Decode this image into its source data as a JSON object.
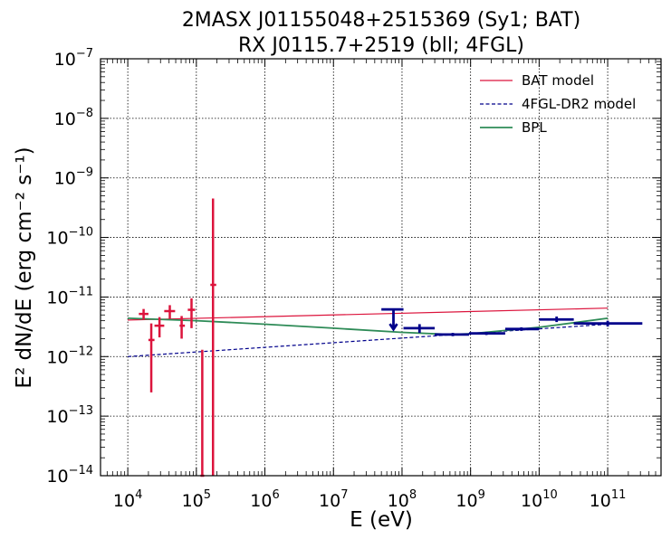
{
  "chart_data": {
    "type": "scatter",
    "title_line1": "2MASX J01155048+2515369 (Sy1; BAT)",
    "title_line2": "RX J0115.7+2519 (bll; 4FGL)",
    "xlabel": "E (eV)",
    "ylabel": "E² dN/dE (erg cm⁻² s⁻¹)",
    "x_scale": "log",
    "y_scale": "log",
    "xlim": [
      4000,
      600000000000.0
    ],
    "ylim": [
      1e-14,
      1e-07
    ],
    "grid": true,
    "legend_position": "top-right",
    "x_tick_labels": [
      {
        "value": 10000.0,
        "base": "10",
        "exp": "4"
      },
      {
        "value": 100000.0,
        "base": "10",
        "exp": "5"
      },
      {
        "value": 1000000.0,
        "base": "10",
        "exp": "6"
      },
      {
        "value": 10000000.0,
        "base": "10",
        "exp": "7"
      },
      {
        "value": 100000000.0,
        "base": "10",
        "exp": "8"
      },
      {
        "value": 1000000000.0,
        "base": "10",
        "exp": "9"
      },
      {
        "value": 10000000000.0,
        "base": "10",
        "exp": "10"
      },
      {
        "value": 100000000000.0,
        "base": "10",
        "exp": "11"
      }
    ],
    "y_tick_labels": [
      {
        "value": 1e-14,
        "base": "10",
        "exp": "−14"
      },
      {
        "value": 1e-13,
        "base": "10",
        "exp": "−13"
      },
      {
        "value": 1e-12,
        "base": "10",
        "exp": "−12"
      },
      {
        "value": 1e-11,
        "base": "10",
        "exp": "−11"
      },
      {
        "value": 1e-10,
        "base": "10",
        "exp": "−10"
      },
      {
        "value": 1e-09,
        "base": "10",
        "exp": "−9"
      },
      {
        "value": 1e-08,
        "base": "10",
        "exp": "−8"
      },
      {
        "value": 1e-07,
        "base": "10",
        "exp": "−7"
      }
    ],
    "legend": [
      {
        "label": "BAT model",
        "color": "#dc143c",
        "dash": "solid"
      },
      {
        "label": "4FGL-DR2 model",
        "color": "#00008b",
        "dash": "dashed"
      },
      {
        "label": "BPL",
        "color": "#2e8b57",
        "dash": "solid"
      }
    ],
    "lines": [
      {
        "name": "BAT model",
        "color": "#dc143c",
        "dash": "solid",
        "x": [
          10000.0,
          100000000000.0
        ],
        "y": [
          4.1e-12,
          6.5e-12
        ]
      },
      {
        "name": "4FGL-DR2 model",
        "color": "#00008b",
        "dash": "dashed",
        "x": [
          10000.0,
          100000000000.0
        ],
        "y": [
          1e-12,
          3.5e-12
        ]
      },
      {
        "name": "BPL",
        "color": "#2e8b57",
        "dash": "solid",
        "x": [
          10000.0,
          100000.0,
          1000000.0,
          10000000.0,
          100000000.0,
          500000000.0,
          1000000000.0,
          10000000000.0,
          100000000000.0
        ],
        "y": [
          4.4e-12,
          4e-12,
          3.5e-12,
          3e-12,
          2.55e-12,
          2.35e-12,
          2.42e-12,
          3.1e-12,
          4.4e-12
        ]
      }
    ],
    "bat_points": {
      "color": "#dc143c",
      "points": [
        {
          "x": 17000.0,
          "xlo": 14500.0,
          "xhi": 20000.0,
          "y": 5.2e-12,
          "ylo": 4.2e-12,
          "yhi": 6.3e-12,
          "upper_limit": false
        },
        {
          "x": 22000.0,
          "xlo": 20000.0,
          "xhi": 24500.0,
          "y": 1.9e-12,
          "ylo": 2.5e-13,
          "yhi": 3.6e-12,
          "upper_limit": false
        },
        {
          "x": 29000.0,
          "xlo": 24500.0,
          "xhi": 34000.0,
          "y": 3.3e-12,
          "ylo": 2.1e-12,
          "yhi": 4.6e-12,
          "upper_limit": false
        },
        {
          "x": 41000.0,
          "xlo": 34000.0,
          "xhi": 49000.0,
          "y": 5.8e-12,
          "ylo": 4.3e-12,
          "yhi": 7.3e-12,
          "upper_limit": false
        },
        {
          "x": 61000.0,
          "xlo": 57000.0,
          "xhi": 68000.0,
          "y": 3.3e-12,
          "ylo": 2e-12,
          "yhi": 4.8e-12,
          "upper_limit": false
        },
        {
          "x": 85000.0,
          "xlo": 75000.0,
          "xhi": 96000.0,
          "y": 6.1e-12,
          "ylo": 3e-12,
          "yhi": 9.5e-12,
          "upper_limit": false
        },
        {
          "x": 122000.0,
          "xlo": 115000.0,
          "xhi": 130000.0,
          "y": 1e-14,
          "ylo": 1e-14,
          "yhi": 1.3e-12,
          "upper_limit": false
        },
        {
          "x": 175000.0,
          "xlo": 160000.0,
          "xhi": 195000.0,
          "y": 1.6e-11,
          "ylo": 1e-14,
          "yhi": 4.5e-10,
          "upper_limit": false
        }
      ]
    },
    "fermi_points": {
      "color": "#00008b",
      "points": [
        {
          "x": 75000000.0,
          "xlo": 50000000.0,
          "xhi": 105000000.0,
          "y": 6.2e-12,
          "upper_limit": true
        },
        {
          "x": 180000000.0,
          "xlo": 105000000.0,
          "xhi": 300000000.0,
          "y": 3e-12,
          "ylo": 2.5e-12,
          "yhi": 3.5e-12,
          "upper_limit": false
        },
        {
          "x": 550000000.0,
          "xlo": 300000000.0,
          "xhi": 950000000.0,
          "y": 2.35e-12,
          "ylo": 2.2e-12,
          "yhi": 2.5e-12,
          "upper_limit": false
        },
        {
          "x": 1700000000.0,
          "xlo": 950000000.0,
          "xhi": 3200000000.0,
          "y": 2.45e-12,
          "ylo": 2.3e-12,
          "yhi": 2.6e-12,
          "upper_limit": false
        },
        {
          "x": 5500000000.0,
          "xlo": 3200000000.0,
          "xhi": 10000000000.0,
          "y": 2.9e-12,
          "ylo": 2.7e-12,
          "yhi": 3.1e-12,
          "upper_limit": false
        },
        {
          "x": 18000000000.0,
          "xlo": 10000000000.0,
          "xhi": 32000000000.0,
          "y": 4.2e-12,
          "ylo": 3.8e-12,
          "yhi": 4.7e-12,
          "upper_limit": false
        },
        {
          "x": 100000000000.0,
          "xlo": 32000000000.0,
          "xhi": 320000000000.0,
          "y": 3.6e-12,
          "ylo": 3.2e-12,
          "yhi": 4e-12,
          "upper_limit": false
        }
      ]
    }
  }
}
